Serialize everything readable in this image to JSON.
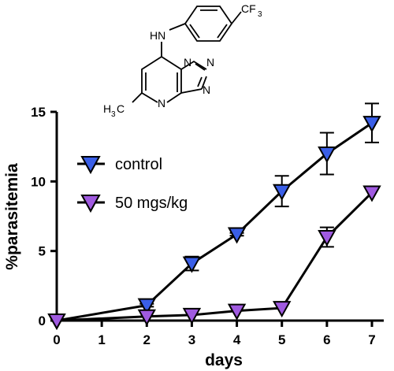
{
  "chart_data": {
    "type": "line",
    "xlabel": "days",
    "ylabel": "%parasitemia",
    "xlim": [
      0,
      7
    ],
    "ylim": [
      0,
      15
    ],
    "x_ticks": [
      "0",
      "1",
      "2",
      "3",
      "4",
      "5",
      "6",
      "7"
    ],
    "y_ticks": [
      "0",
      "5",
      "10",
      "15"
    ],
    "legend_position": "middle-left",
    "grid": false,
    "series": [
      {
        "name": "control",
        "color": "#3a5fe8",
        "marker": "triangle-down",
        "x": [
          0,
          2,
          3,
          4,
          5,
          6,
          7
        ],
        "y": [
          0,
          1.1,
          4.1,
          6.2,
          9.3,
          12.0,
          14.2
        ],
        "error": [
          0,
          0.1,
          0.5,
          0.1,
          1.1,
          1.5,
          1.4
        ]
      },
      {
        "name": "50 mgs/kg",
        "color": "#a05ae0",
        "marker": "triangle-down",
        "x": [
          0,
          2,
          3,
          4,
          5,
          6,
          7
        ],
        "y": [
          0,
          0.3,
          0.4,
          0.7,
          0.9,
          6.0,
          9.2
        ],
        "error": [
          0,
          0,
          0,
          0,
          0,
          0.7,
          0
        ]
      }
    ]
  },
  "structure": {
    "amine_label": "HN",
    "methyl_label": "H",
    "methyl_subscript": "3",
    "methyl_carbon": "C",
    "cf3_label": "CF",
    "cf3_subscript": "3",
    "n_labels": [
      "N",
      "N",
      "N",
      "N"
    ]
  }
}
